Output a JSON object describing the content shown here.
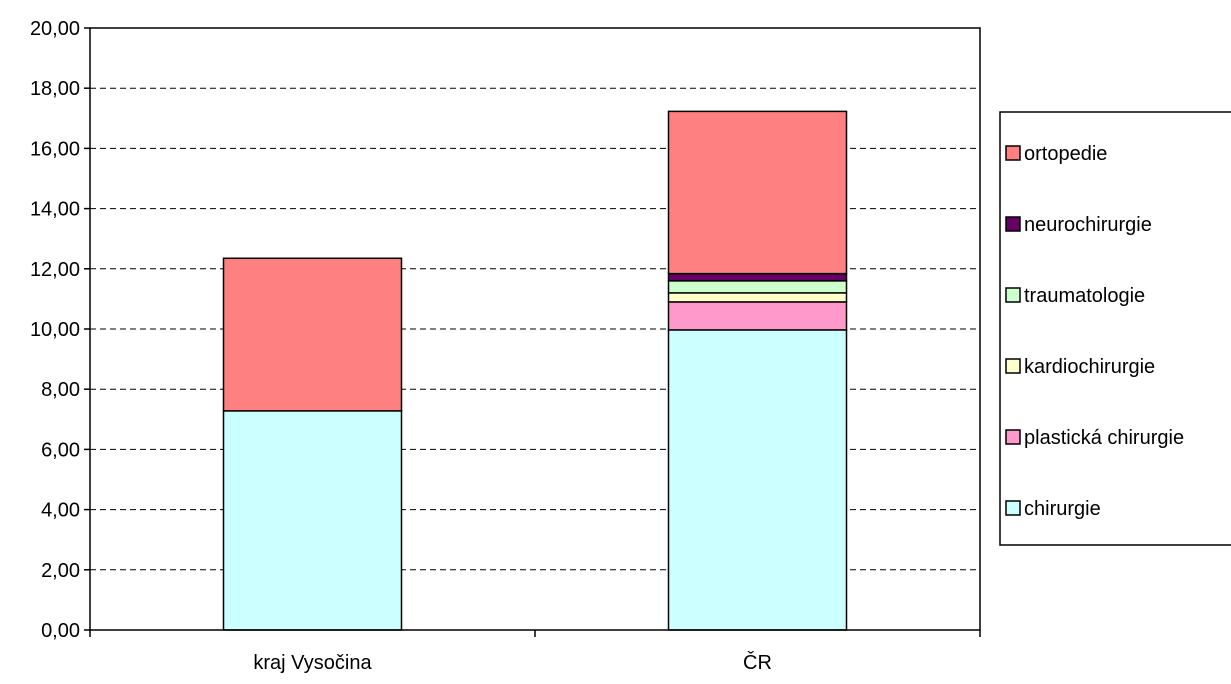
{
  "chart_data": {
    "type": "bar",
    "stacked": true,
    "categories": [
      "kraj Vysočina",
      "ČR"
    ],
    "series": [
      {
        "name": "chirurgie",
        "color": "#ccffff",
        "values": [
          7.28,
          9.97
        ]
      },
      {
        "name": "plastická chirurgie",
        "color": "#ff99cc",
        "values": [
          0.0,
          0.93
        ]
      },
      {
        "name": "kardiochirurgie",
        "color": "#ffffcc",
        "values": [
          0.0,
          0.3
        ]
      },
      {
        "name": "traumatologie",
        "color": "#ccffcc",
        "values": [
          0.0,
          0.4
        ]
      },
      {
        "name": "neurochirurgie",
        "color": "#660066",
        "values": [
          0.0,
          0.24
        ]
      },
      {
        "name": "ortopedie",
        "color": "#ff8080",
        "values": [
          5.07,
          5.39
        ]
      }
    ],
    "ylim": [
      0,
      20
    ],
    "yticks": [
      "0,00",
      "2,00",
      "4,00",
      "6,00",
      "8,00",
      "10,00",
      "12,00",
      "14,00",
      "16,00",
      "18,00",
      "20,00"
    ],
    "grid": true,
    "legend_position": "right",
    "legend_order": [
      "ortopedie",
      "neurochirurgie",
      "traumatologie",
      "kardiochirurgie",
      "plastická chirurgie",
      "chirurgie"
    ]
  }
}
